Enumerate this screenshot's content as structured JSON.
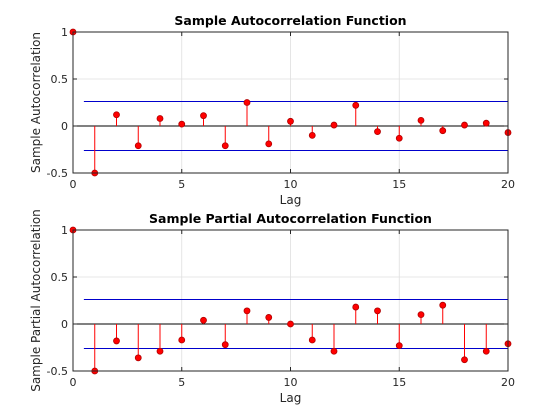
{
  "chart_data": [
    {
      "type": "stem",
      "title": "Sample Autocorrelation Function",
      "xlabel": "Lag",
      "ylabel": "Sample Autocorrelation",
      "xlim": [
        0,
        20
      ],
      "ylim": [
        -0.5,
        1
      ],
      "xticks": [
        "0",
        "5",
        "10",
        "15",
        "20"
      ],
      "yticks": [
        "-0.5",
        "0",
        "0.5",
        "1"
      ],
      "grid": true,
      "x": [
        0,
        1,
        2,
        3,
        4,
        5,
        6,
        7,
        8,
        9,
        10,
        11,
        12,
        13,
        14,
        15,
        16,
        17,
        18,
        19,
        20
      ],
      "values": [
        1.0,
        -0.5,
        0.12,
        -0.21,
        0.08,
        0.02,
        0.11,
        -0.21,
        0.25,
        -0.19,
        0.05,
        -0.1,
        0.01,
        0.22,
        -0.06,
        -0.13,
        0.06,
        -0.05,
        0.01,
        0.03,
        -0.07
      ],
      "confidence_bounds": [
        0.26,
        -0.26
      ],
      "colors": {
        "stem": "#ff0000",
        "marker": "#ff0000",
        "bounds": "#0000cc",
        "zero": "#000000"
      }
    },
    {
      "type": "stem",
      "title": "Sample Partial Autocorrelation Function",
      "xlabel": "Lag",
      "ylabel": "Sample Partial Autocorrelation",
      "xlim": [
        0,
        20
      ],
      "ylim": [
        -0.5,
        1
      ],
      "xticks": [
        "0",
        "5",
        "10",
        "15",
        "20"
      ],
      "yticks": [
        "-0.5",
        "0",
        "0.5",
        "1"
      ],
      "grid": true,
      "x": [
        0,
        1,
        2,
        3,
        4,
        5,
        6,
        7,
        8,
        9,
        10,
        11,
        12,
        13,
        14,
        15,
        16,
        17,
        18,
        19,
        20
      ],
      "values": [
        1.0,
        -0.5,
        -0.18,
        -0.36,
        -0.29,
        -0.17,
        0.04,
        -0.22,
        0.14,
        0.07,
        0.0,
        -0.17,
        -0.29,
        0.18,
        0.14,
        -0.23,
        0.1,
        0.2,
        -0.38,
        -0.29,
        -0.21
      ],
      "confidence_bounds": [
        0.26,
        -0.26
      ],
      "colors": {
        "stem": "#ff0000",
        "marker": "#ff0000",
        "bounds": "#0000cc",
        "zero": "#000000"
      }
    }
  ]
}
